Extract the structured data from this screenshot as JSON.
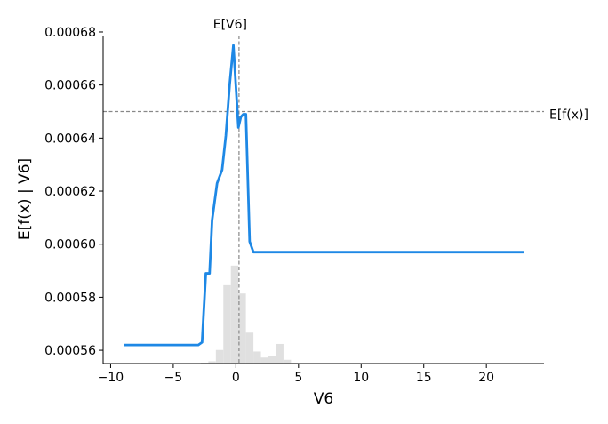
{
  "chart_data": {
    "type": "line",
    "title": "",
    "xlabel": "V6",
    "ylabel": "E[f(x) | V6]",
    "xlim": [
      -10.6,
      24.6
    ],
    "ylim": [
      0.000555,
      0.000681
    ],
    "grid": false,
    "legend": "none",
    "x_ticks": [
      -10,
      -5,
      0,
      5,
      10,
      15,
      20
    ],
    "x_tick_labels": [
      "−10",
      "−5",
      "0",
      "5",
      "10",
      "15",
      "20"
    ],
    "y_ticks": [
      0.00056,
      0.00058,
      0.0006,
      0.00062,
      0.00064,
      0.00066,
      0.00068
    ],
    "y_tick_labels": [
      "0.00056",
      "0.00058",
      "0.00060",
      "0.00062",
      "0.00064",
      "0.00066",
      "0.00068"
    ],
    "series": [
      {
        "color": "#1e88e5",
        "x": [
          -8.9,
          -3.0,
          -2.7,
          -2.4,
          -2.1,
          -1.9,
          -1.5,
          -1.1,
          -0.8,
          -0.5,
          -0.2,
          0.2,
          0.4,
          0.6,
          0.8,
          1.1,
          1.4,
          2.0,
          23.0
        ],
        "y": [
          0.000562,
          0.000562,
          0.000563,
          0.000589,
          0.000589,
          0.000609,
          0.000623,
          0.000628,
          0.000641,
          0.00066,
          0.000675,
          0.000644,
          0.000648,
          0.000649,
          0.000649,
          0.000601,
          0.000597,
          0.000597,
          0.000597
        ]
      }
    ],
    "histogram": {
      "color": "#e0e0e0",
      "bins": [
        {
          "x0": -2.8,
          "x1": -2.2,
          "count": 0.1
        },
        {
          "x0": -2.2,
          "x1": -1.6,
          "count": 0.3
        },
        {
          "x0": -1.6,
          "x1": -1.0,
          "count": 1.8
        },
        {
          "x0": -1.0,
          "x1": -0.4,
          "count": 10.4
        },
        {
          "x0": -0.4,
          "x1": 0.2,
          "count": 13.0
        },
        {
          "x0": 0.2,
          "x1": 0.8,
          "count": 9.3
        },
        {
          "x0": 0.8,
          "x1": 1.4,
          "count": 4.1
        },
        {
          "x0": 1.4,
          "x1": 2.0,
          "count": 1.6
        },
        {
          "x0": 2.0,
          "x1": 2.6,
          "count": 0.8
        },
        {
          "x0": 2.6,
          "x1": 3.2,
          "count": 1.0
        },
        {
          "x0": 3.2,
          "x1": 3.8,
          "count": 2.6
        },
        {
          "x0": 3.8,
          "x1": 4.4,
          "count": 0.5
        },
        {
          "x0": 4.4,
          "x1": 5.0,
          "count": 0.1
        }
      ]
    },
    "reference_lines": [
      {
        "orientation": "vertical",
        "value": 0.25,
        "label": "E[V6]",
        "color": "#888888"
      },
      {
        "orientation": "horizontal",
        "value": 0.00065,
        "label": "E[f(x)]",
        "color": "#888888"
      }
    ]
  }
}
